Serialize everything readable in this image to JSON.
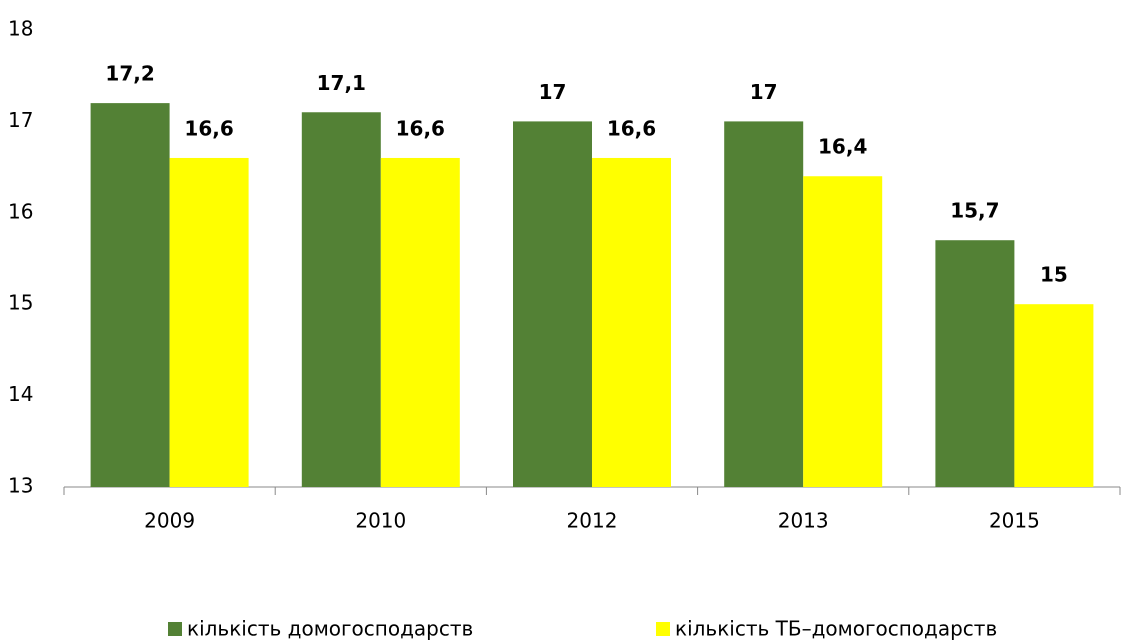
{
  "chart_data": {
    "type": "bar",
    "categories": [
      "2009",
      "2010",
      "2012",
      "2013",
      "2015"
    ],
    "series": [
      {
        "name": "кількість домогосподарств",
        "color": "#538135",
        "values": [
          17.2,
          17.1,
          17,
          17,
          15.7
        ],
        "value_labels": [
          "17,2",
          "17,1",
          "17",
          "17",
          "15,7"
        ]
      },
      {
        "name": "кількість ТБ–домогосподарств",
        "color": "#ffff00",
        "values": [
          16.6,
          16.6,
          16.6,
          16.4,
          15
        ],
        "value_labels": [
          "16,6",
          "16,6",
          "16,6",
          "16,4",
          "15"
        ]
      }
    ],
    "ylim": [
      13,
      18
    ],
    "yticks": [
      13,
      14,
      15,
      16,
      17,
      18
    ],
    "grid": false,
    "legend": "bottom"
  }
}
